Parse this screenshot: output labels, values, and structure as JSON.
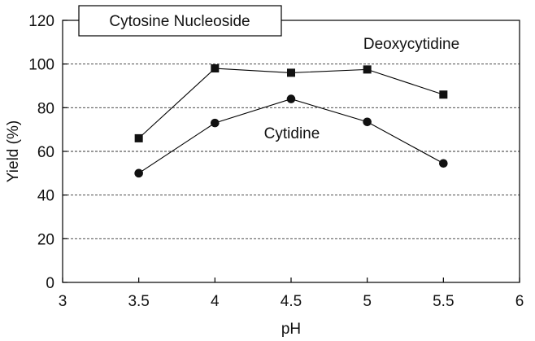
{
  "chart_data": {
    "type": "line",
    "title": "Cytosine Nucleoside",
    "xlabel": "pH",
    "ylabel": "Yield (%)",
    "xlim": [
      3,
      6
    ],
    "ylim": [
      0,
      120
    ],
    "xticks": [
      "3",
      "3.5",
      "4",
      "4.5",
      "5",
      "5.5",
      "6"
    ],
    "yticks": [
      "0",
      "20",
      "40",
      "60",
      "80",
      "100",
      "120"
    ],
    "grid": "horizontal-dashed",
    "x": [
      3.5,
      4,
      4.5,
      5,
      5.5
    ],
    "series": [
      {
        "name": "Deoxycytidine",
        "marker": "square",
        "values": [
          66,
          98,
          96,
          97.5,
          86
        ]
      },
      {
        "name": "Cytidine",
        "marker": "circle",
        "values": [
          50,
          73,
          84,
          73.5,
          54.5
        ]
      }
    ],
    "colors": {
      "line": "#000000",
      "grid": "#333333"
    }
  }
}
